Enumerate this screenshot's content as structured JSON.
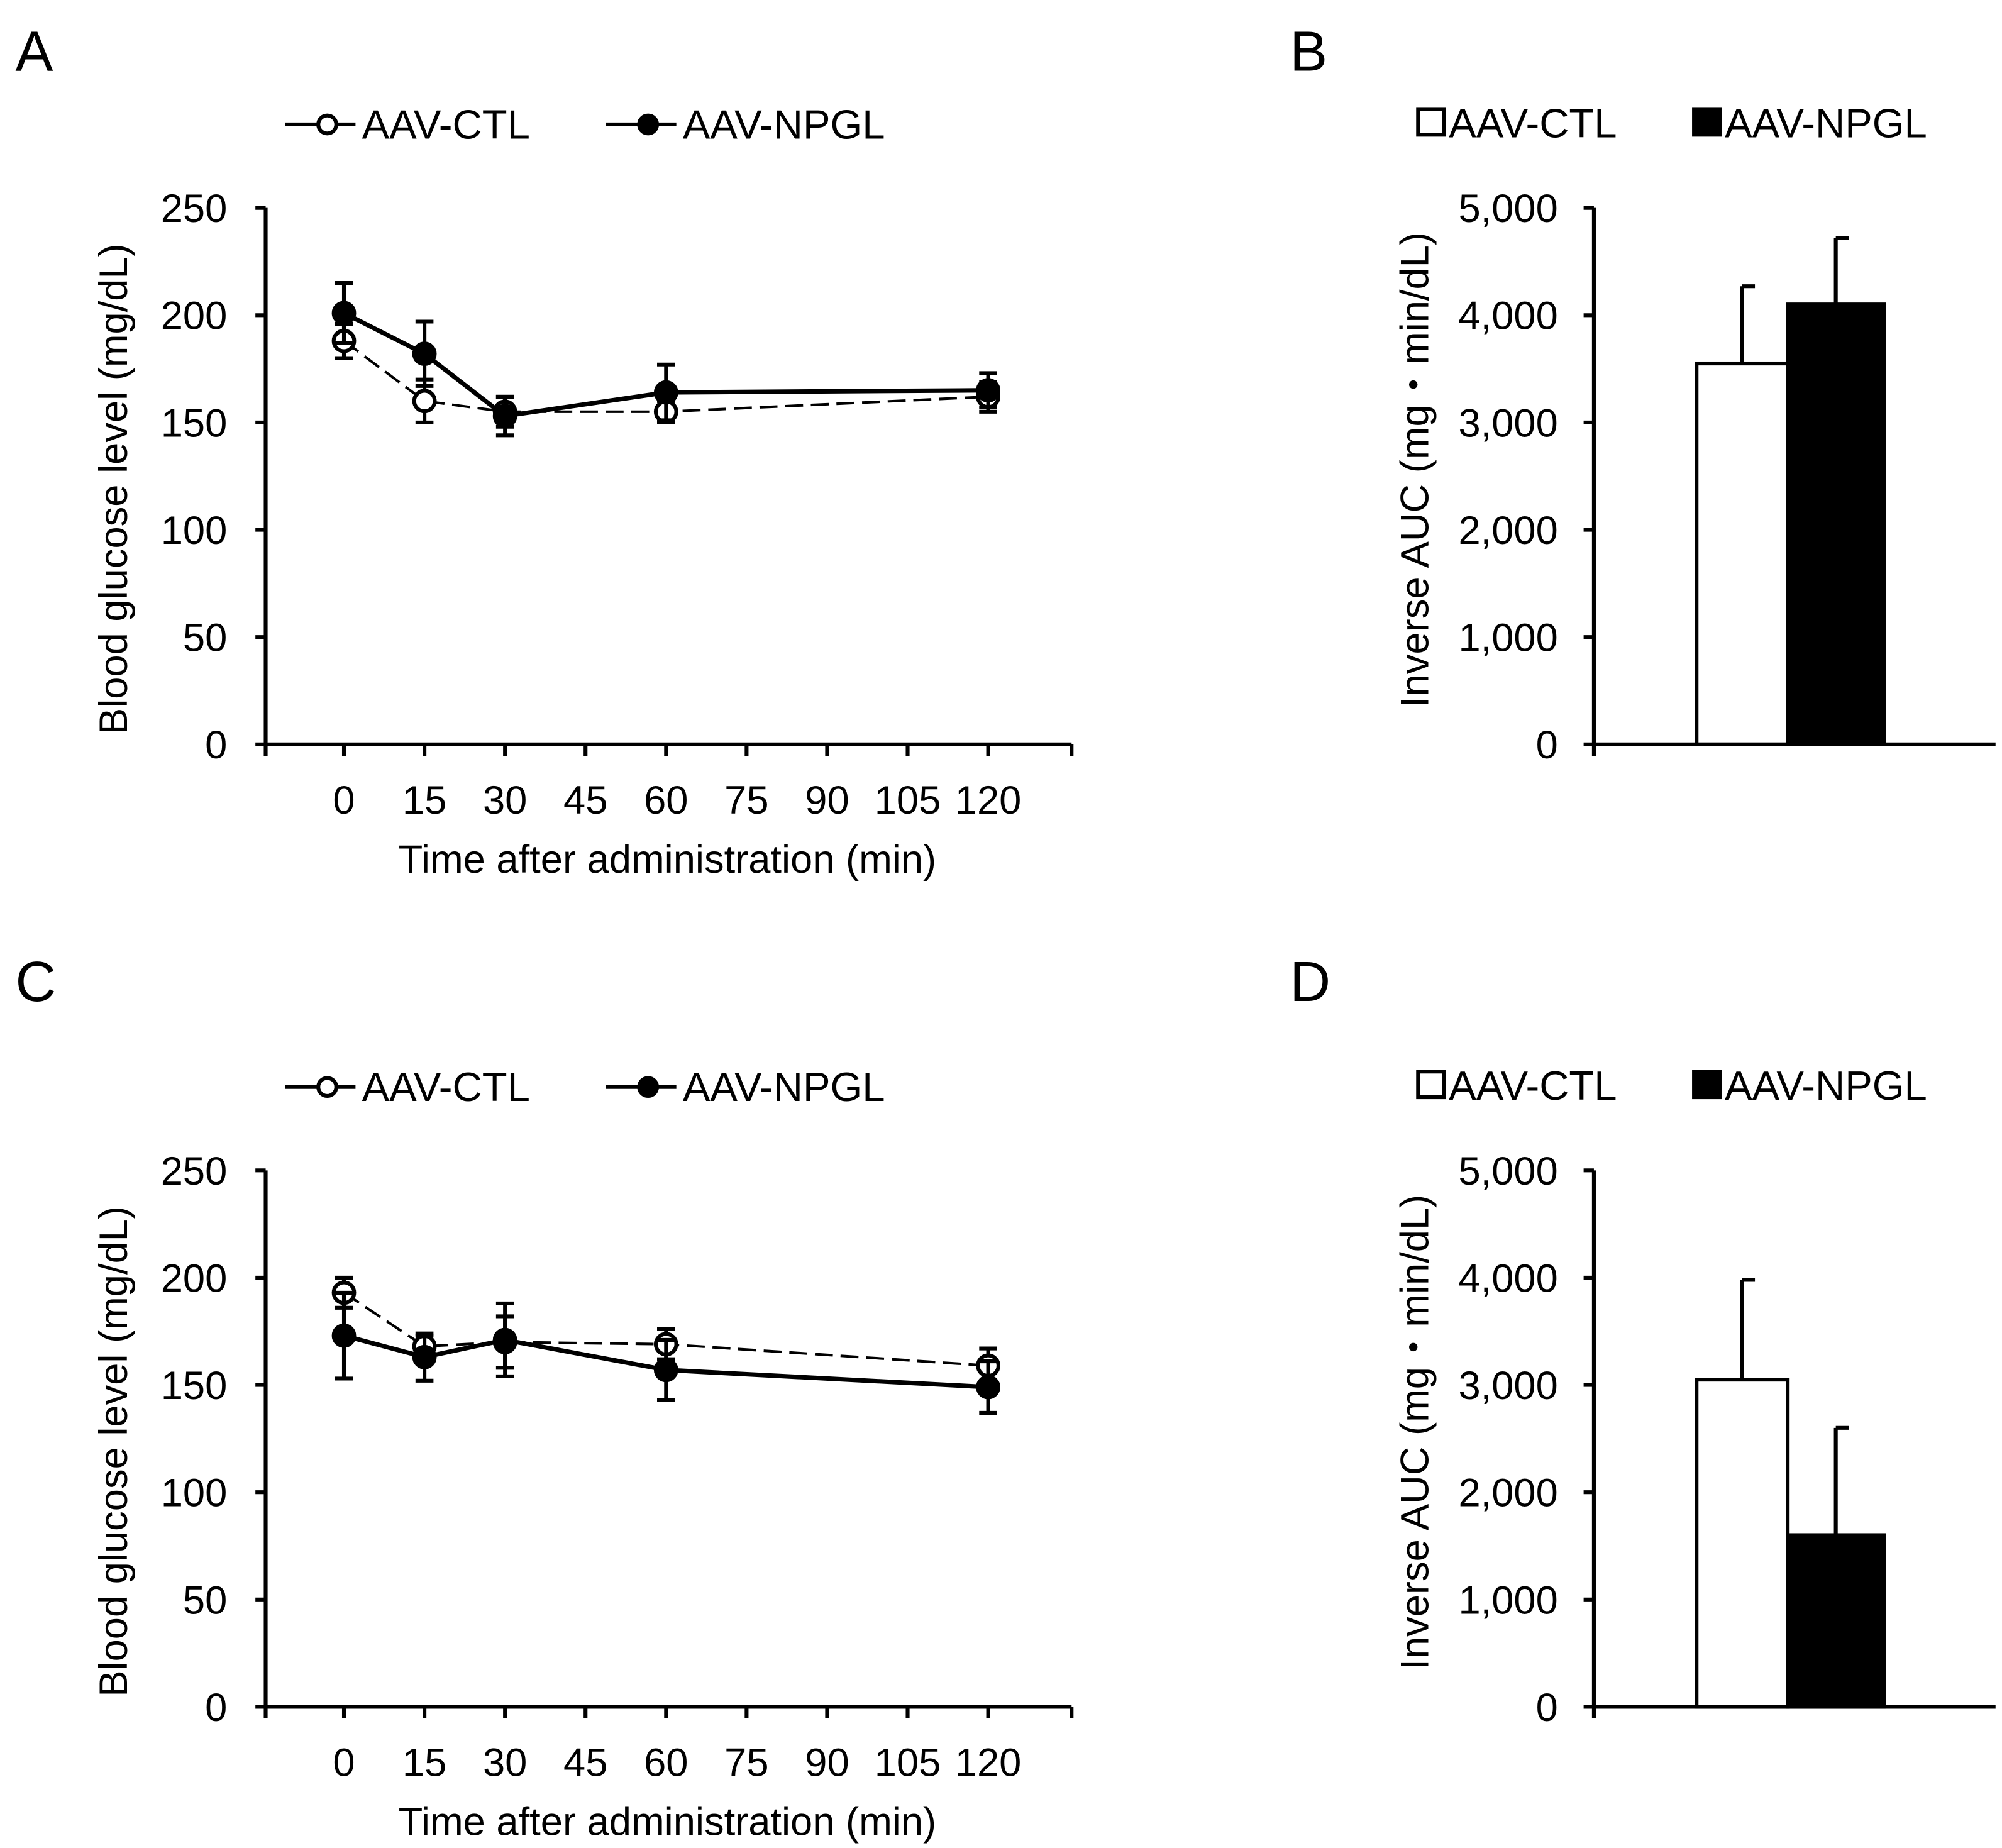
{
  "chart_data": [
    {
      "panel": "A",
      "type": "line",
      "xlabel": "Time after administration (min)",
      "ylabel": "Blood glucose level (mg/dL)",
      "x": [
        0,
        15,
        30,
        60,
        120
      ],
      "xticks": [
        "0",
        "15",
        "30",
        "45",
        "60",
        "75",
        "90",
        "105",
        "120"
      ],
      "yticks": [
        "0",
        "50",
        "100",
        "150",
        "200",
        "250"
      ],
      "ylim": [
        0,
        250
      ],
      "xlim": [
        -15,
        135
      ],
      "legend": "top",
      "series": [
        {
          "name": "AAV-CTL",
          "marker": "open-circle",
          "values": [
            188,
            160,
            155,
            155,
            162
          ],
          "errors": [
            8,
            10,
            7,
            5,
            7
          ]
        },
        {
          "name": "AAV-NPGL",
          "marker": "filled-circle",
          "values": [
            201,
            182,
            153,
            164,
            165
          ],
          "errors": [
            14,
            15,
            9,
            13,
            8
          ]
        }
      ]
    },
    {
      "panel": "B",
      "type": "bar",
      "ylabel": "Inverse AUC (mg・min/dL)",
      "categories": [
        "AAV-CTL",
        "AAV-NPGL"
      ],
      "values": [
        3550,
        4100
      ],
      "errors": [
        720,
        620
      ],
      "yticks": [
        "0",
        "1,000",
        "2,000",
        "3,000",
        "4,000",
        "5,000"
      ],
      "ylim": [
        0,
        5000
      ],
      "legend": "top"
    },
    {
      "panel": "C",
      "type": "line",
      "xlabel": "Time after administration (min)",
      "ylabel": "Blood glucose level (mg/dL)",
      "x": [
        0,
        15,
        30,
        60,
        120
      ],
      "xticks": [
        "0",
        "15",
        "30",
        "45",
        "60",
        "75",
        "90",
        "105",
        "120"
      ],
      "yticks": [
        "0",
        "50",
        "100",
        "150",
        "200",
        "250"
      ],
      "ylim": [
        0,
        250
      ],
      "xlim": [
        -15,
        135
      ],
      "legend": "top",
      "series": [
        {
          "name": "AAV-CTL",
          "marker": "open-circle",
          "values": [
            193,
            168,
            170,
            169,
            159
          ],
          "errors": [
            7,
            5,
            12,
            7,
            8
          ]
        },
        {
          "name": "AAV-NPGL",
          "marker": "filled-circle",
          "values": [
            173,
            163,
            171,
            157,
            149
          ],
          "errors": [
            20,
            11,
            17,
            14,
            12
          ]
        }
      ]
    },
    {
      "panel": "D",
      "type": "bar",
      "ylabel": "Inverse AUC (mg・min/dL)",
      "categories": [
        "AAV-CTL",
        "AAV-NPGL"
      ],
      "values": [
        3050,
        1600
      ],
      "errors": [
        930,
        1000
      ],
      "yticks": [
        "0",
        "1,000",
        "2,000",
        "3,000",
        "4,000",
        "5,000"
      ],
      "ylim": [
        0,
        5000
      ],
      "legend": "top"
    }
  ]
}
